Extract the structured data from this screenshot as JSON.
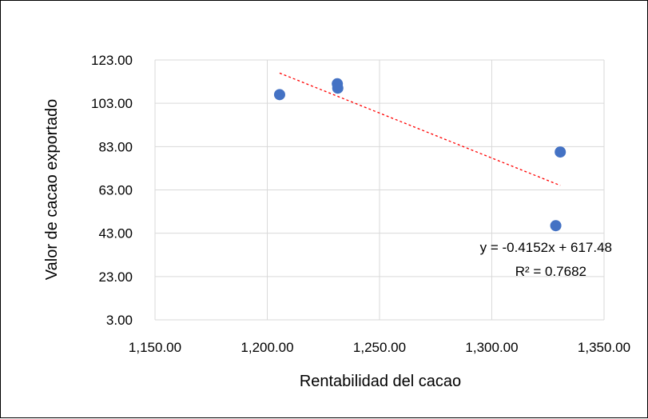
{
  "chart_data": {
    "type": "scatter",
    "xlabel": "Rentabilidad del cacao",
    "ylabel": "Valor de cacao exportado",
    "xlim": [
      1150,
      1350
    ],
    "ylim": [
      3,
      123
    ],
    "x_ticks": [
      1150,
      1200,
      1250,
      1300,
      1350
    ],
    "y_ticks": [
      3,
      23,
      43,
      63,
      83,
      103,
      123
    ],
    "x_tick_labels": [
      "1,150.00",
      "1,200.00",
      "1,250.00",
      "1,300.00",
      "1,350.00"
    ],
    "y_tick_labels": [
      "3.00",
      "23.00",
      "43.00",
      "63.00",
      "83.00",
      "103.00",
      "123.00"
    ],
    "grid": true,
    "points": [
      {
        "x": 1205.5,
        "y": 107.0
      },
      {
        "x": 1231.2,
        "y": 112.0
      },
      {
        "x": 1231.4,
        "y": 110.0
      },
      {
        "x": 1328.5,
        "y": 46.5
      },
      {
        "x": 1330.5,
        "y": 80.5
      }
    ],
    "trendline": {
      "slope": -0.4152,
      "intercept": 617.48,
      "x_range": [
        1205.5,
        1330.5
      ],
      "equation": "y = -0.4152x + 617.48",
      "r_squared": "R² = 0.7682"
    },
    "colors": {
      "points": "#4472C4",
      "trendline": "#FF0000",
      "grid": "#D9D9D9"
    }
  }
}
